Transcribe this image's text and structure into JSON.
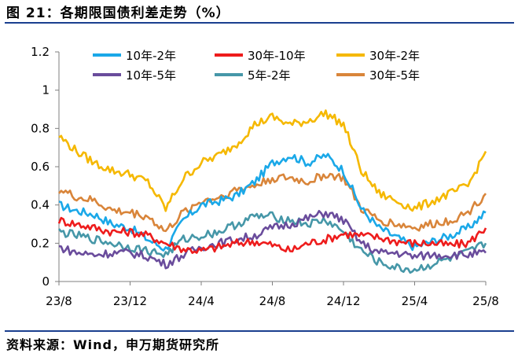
{
  "header": {
    "title": "图 21：各期限国债利差走势（%）"
  },
  "footer": {
    "source": "资料来源：Wind，申万期货研究所"
  },
  "colors": {
    "rule": "#1a3f8f",
    "axis": "#7f7f7f"
  },
  "chart_data": {
    "type": "line",
    "title": "",
    "xlabel": "",
    "ylabel": "",
    "ylim": [
      0,
      1.2
    ],
    "yticks": [
      "0",
      "0.2",
      "0.4",
      "0.6",
      "0.8",
      "1",
      "1.2"
    ],
    "xticks": [
      "23/8",
      "23/12",
      "24/4",
      "24/8",
      "24/12",
      "25/4",
      "25/8"
    ],
    "grid": false,
    "legend_position": "top",
    "x": [
      "23/8",
      "23/9",
      "23/10",
      "23/11",
      "23/12",
      "24/1",
      "24/2",
      "24/3",
      "24/4",
      "24/5",
      "24/6",
      "24/7",
      "24/8",
      "24/9",
      "24/10",
      "24/11",
      "24/12",
      "25/1",
      "25/2",
      "25/3",
      "25/4",
      "25/5",
      "25/6",
      "25/7",
      "25/8"
    ],
    "series": [
      {
        "name": "10年-2年",
        "color": "#1aa8e8",
        "values": [
          0.4,
          0.37,
          0.35,
          0.3,
          0.28,
          0.22,
          0.17,
          0.32,
          0.4,
          0.42,
          0.45,
          0.52,
          0.62,
          0.66,
          0.62,
          0.66,
          0.58,
          0.38,
          0.28,
          0.23,
          0.18,
          0.21,
          0.24,
          0.28,
          0.36
        ]
      },
      {
        "name": "30年-10年",
        "color": "#ee1c1c",
        "values": [
          0.32,
          0.3,
          0.28,
          0.26,
          0.26,
          0.24,
          0.2,
          0.17,
          0.16,
          0.18,
          0.2,
          0.21,
          0.19,
          0.16,
          0.2,
          0.22,
          0.25,
          0.24,
          0.23,
          0.21,
          0.2,
          0.2,
          0.19,
          0.2,
          0.28
        ]
      },
      {
        "name": "30年-2年",
        "color": "#f5b800",
        "values": [
          0.76,
          0.68,
          0.62,
          0.58,
          0.56,
          0.52,
          0.38,
          0.54,
          0.62,
          0.66,
          0.72,
          0.82,
          0.86,
          0.82,
          0.84,
          0.88,
          0.82,
          0.58,
          0.46,
          0.42,
          0.38,
          0.42,
          0.46,
          0.5,
          0.68
        ]
      },
      {
        "name": "10年-5年",
        "color": "#6a4c9c",
        "values": [
          0.18,
          0.15,
          0.14,
          0.15,
          0.15,
          0.13,
          0.09,
          0.14,
          0.18,
          0.2,
          0.22,
          0.24,
          0.28,
          0.3,
          0.33,
          0.36,
          0.32,
          0.2,
          0.15,
          0.15,
          0.13,
          0.14,
          0.14,
          0.14,
          0.15
        ]
      },
      {
        "name": "5年-2年",
        "color": "#4697a8",
        "values": [
          0.26,
          0.24,
          0.22,
          0.2,
          0.18,
          0.16,
          0.14,
          0.22,
          0.24,
          0.26,
          0.3,
          0.34,
          0.34,
          0.32,
          0.3,
          0.32,
          0.26,
          0.16,
          0.1,
          0.07,
          0.06,
          0.09,
          0.12,
          0.15,
          0.2
        ]
      },
      {
        "name": "30年-5年",
        "color": "#d9853a",
        "values": [
          0.48,
          0.44,
          0.42,
          0.37,
          0.36,
          0.34,
          0.26,
          0.36,
          0.42,
          0.44,
          0.48,
          0.5,
          0.54,
          0.54,
          0.52,
          0.56,
          0.54,
          0.38,
          0.32,
          0.3,
          0.28,
          0.3,
          0.32,
          0.36,
          0.46
        ]
      }
    ]
  }
}
